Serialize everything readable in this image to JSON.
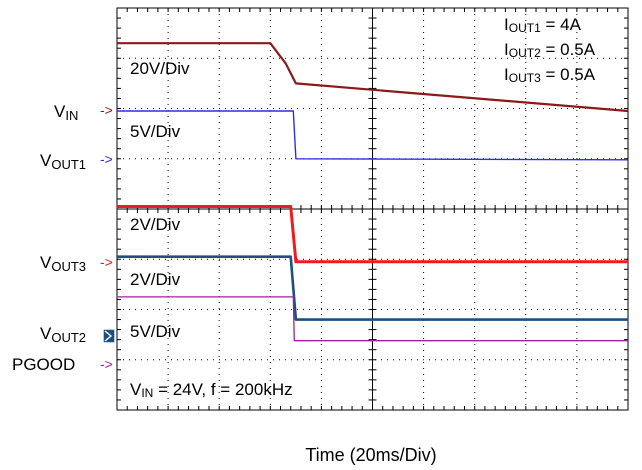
{
  "chart_data": {
    "type": "line",
    "xlabel": "Time (20ms/Div)",
    "grid": true,
    "divisions": {
      "x": 10,
      "y": 8
    },
    "x_range_div": [
      0,
      10
    ],
    "y_range_div": [
      0,
      8
    ],
    "annotations": [
      "20V/Div",
      "5V/Div",
      "2V/Div",
      "2V/Div",
      "5V/Div",
      "IOUT1 = 4A",
      "IOUT2 = 0.5A",
      "IOUT3 = 0.5A",
      "VIN = 24V, f = 200kHz"
    ],
    "annotation_parts": {
      "iout1": {
        "main": "I",
        "sub": "OUT1",
        "rest": " = 4A"
      },
      "iout2": {
        "main": "I",
        "sub": "OUT2",
        "rest": " = 0.5A"
      },
      "iout3": {
        "main": "I",
        "sub": "OUT3",
        "rest": " = 0.5A"
      },
      "cond": {
        "main": "V",
        "sub": "IN",
        "rest": " = 24V, f = 200kHz"
      }
    },
    "channel_labels": [
      {
        "main": "V",
        "sub": "IN"
      },
      {
        "main": "V",
        "sub": "OUT1"
      },
      {
        "main": "V",
        "sub": "OUT3"
      },
      {
        "main": "V",
        "sub": "OUT2"
      },
      {
        "main": "PGOOD",
        "sub": ""
      }
    ],
    "series": [
      {
        "color": "#8b1a1a",
        "points_div": [
          [
            0,
            7.3
          ],
          [
            3.0,
            7.3
          ],
          [
            3.3,
            6.9
          ],
          [
            3.5,
            6.5
          ],
          [
            10,
            5.95
          ]
        ]
      },
      {
        "color": "#2f2fe0",
        "points_div": [
          [
            0,
            5.95
          ],
          [
            3.45,
            5.95
          ],
          [
            3.5,
            5.0
          ],
          [
            10,
            4.98
          ]
        ]
      },
      {
        "color": "#ee1c1c",
        "points_div": [
          [
            0,
            4.05
          ],
          [
            3.4,
            4.05
          ],
          [
            3.5,
            2.95
          ],
          [
            10,
            2.95
          ]
        ]
      },
      {
        "color": "#1c4f82",
        "points_div": [
          [
            0,
            3.05
          ],
          [
            3.4,
            3.05
          ],
          [
            3.5,
            1.8
          ],
          [
            10,
            1.8
          ]
        ]
      },
      {
        "color": "#a020a0",
        "points_div": [
          [
            0,
            2.25
          ],
          [
            3.45,
            2.25
          ],
          [
            3.47,
            1.38
          ],
          [
            10,
            1.38
          ]
        ]
      }
    ]
  }
}
